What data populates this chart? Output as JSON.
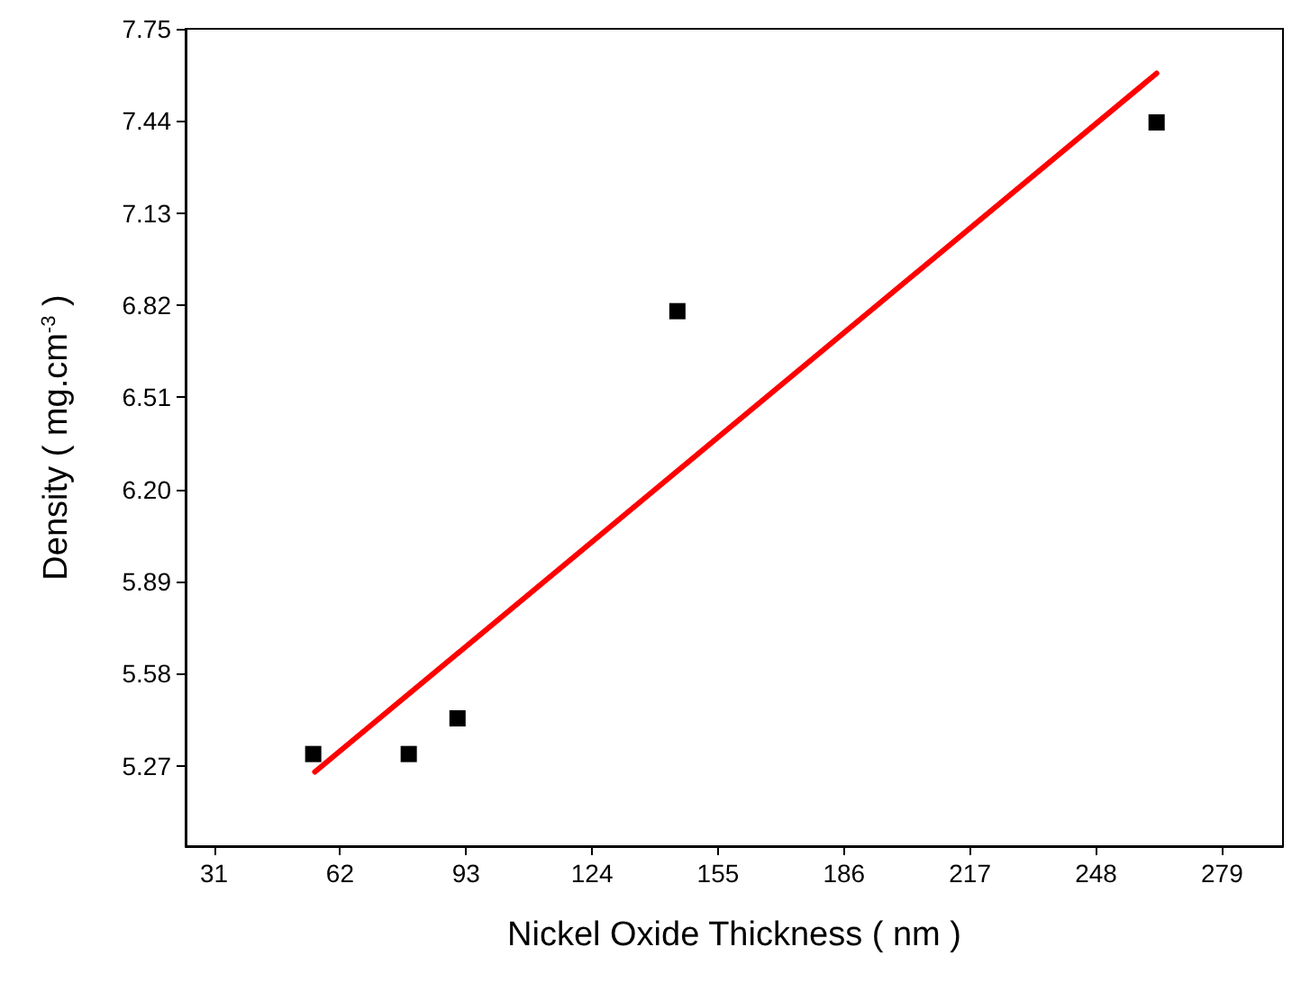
{
  "chart_data": {
    "type": "scatter",
    "xlabel": "Nickel Oxide Thickness ( nm )",
    "ylabel": "Density ( mg.cm$^{-3}$ )",
    "xlim": [
      24,
      294
    ],
    "xticks": [
      31,
      62,
      93,
      124,
      155,
      186,
      217,
      248,
      279
    ],
    "ylim": [
      5.0,
      7.75
    ],
    "yticks": [
      5.27,
      5.58,
      5.89,
      {
        "value": 6.2,
        "label": "6.20"
      },
      6.51,
      6.82,
      7.13,
      7.44,
      7.75
    ],
    "marker": "square",
    "grid": false,
    "series": [
      {
        "color": "#000000",
        "x": [
          55.4,
          78.9,
          90.9,
          145,
          262.9
        ],
        "values": [
          5.31,
          5.31,
          5.43,
          6.8,
          7.435
        ]
      },
      {
        "type": "line",
        "color": "#ff0000",
        "x": [
          55.8,
          262.9
        ],
        "values": [
          5.25,
          7.6
        ],
        "marker": "none"
      }
    ]
  }
}
